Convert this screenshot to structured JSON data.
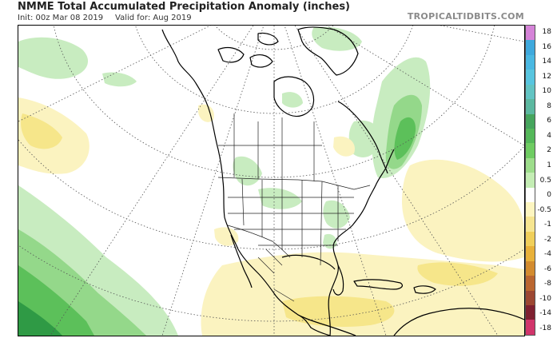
{
  "header": {
    "title": "NMME Total Accumulated Precipitation Anomaly (inches)",
    "init": "Init: 00z Mar 08 2019",
    "valid": "Valid for: Aug 2019",
    "brand": "TROPICALTIDBITS.COM"
  },
  "map": {
    "region": "North America",
    "colors": {
      "ocean": "#ffffff",
      "coast": "#000000",
      "graticule": "#555555",
      "wet_light": "#c8ecc0",
      "wet_mid": "#94d88a",
      "wet_strong": "#5cc05a",
      "wet_deep": "#2f9a45",
      "dry_light": "#fbf3c0",
      "dry_mid": "#f6e68a"
    }
  },
  "legend": {
    "units": "inches",
    "ticks": [
      "18",
      "16",
      "14",
      "12",
      "10",
      "8",
      "6",
      "4",
      "2",
      "1",
      "0.5",
      "0",
      "-0.5",
      "-1",
      "-2",
      "-4",
      "-6",
      "-8",
      "-10",
      "-14",
      "-18"
    ],
    "colors": [
      "#d583d8",
      "#3fa9dd",
      "#4ab8e2",
      "#58c5df",
      "#62c4c3",
      "#5cb8a0",
      "#46a55d",
      "#55b85a",
      "#6fcc62",
      "#9ddd8b",
      "#c4edb4",
      "#ffffff",
      "#fdf5c0",
      "#f6e590",
      "#f0cf5a",
      "#e8b13a",
      "#d38b2f",
      "#ba6630",
      "#9c4732",
      "#7e2030",
      "#d1356b"
    ]
  }
}
